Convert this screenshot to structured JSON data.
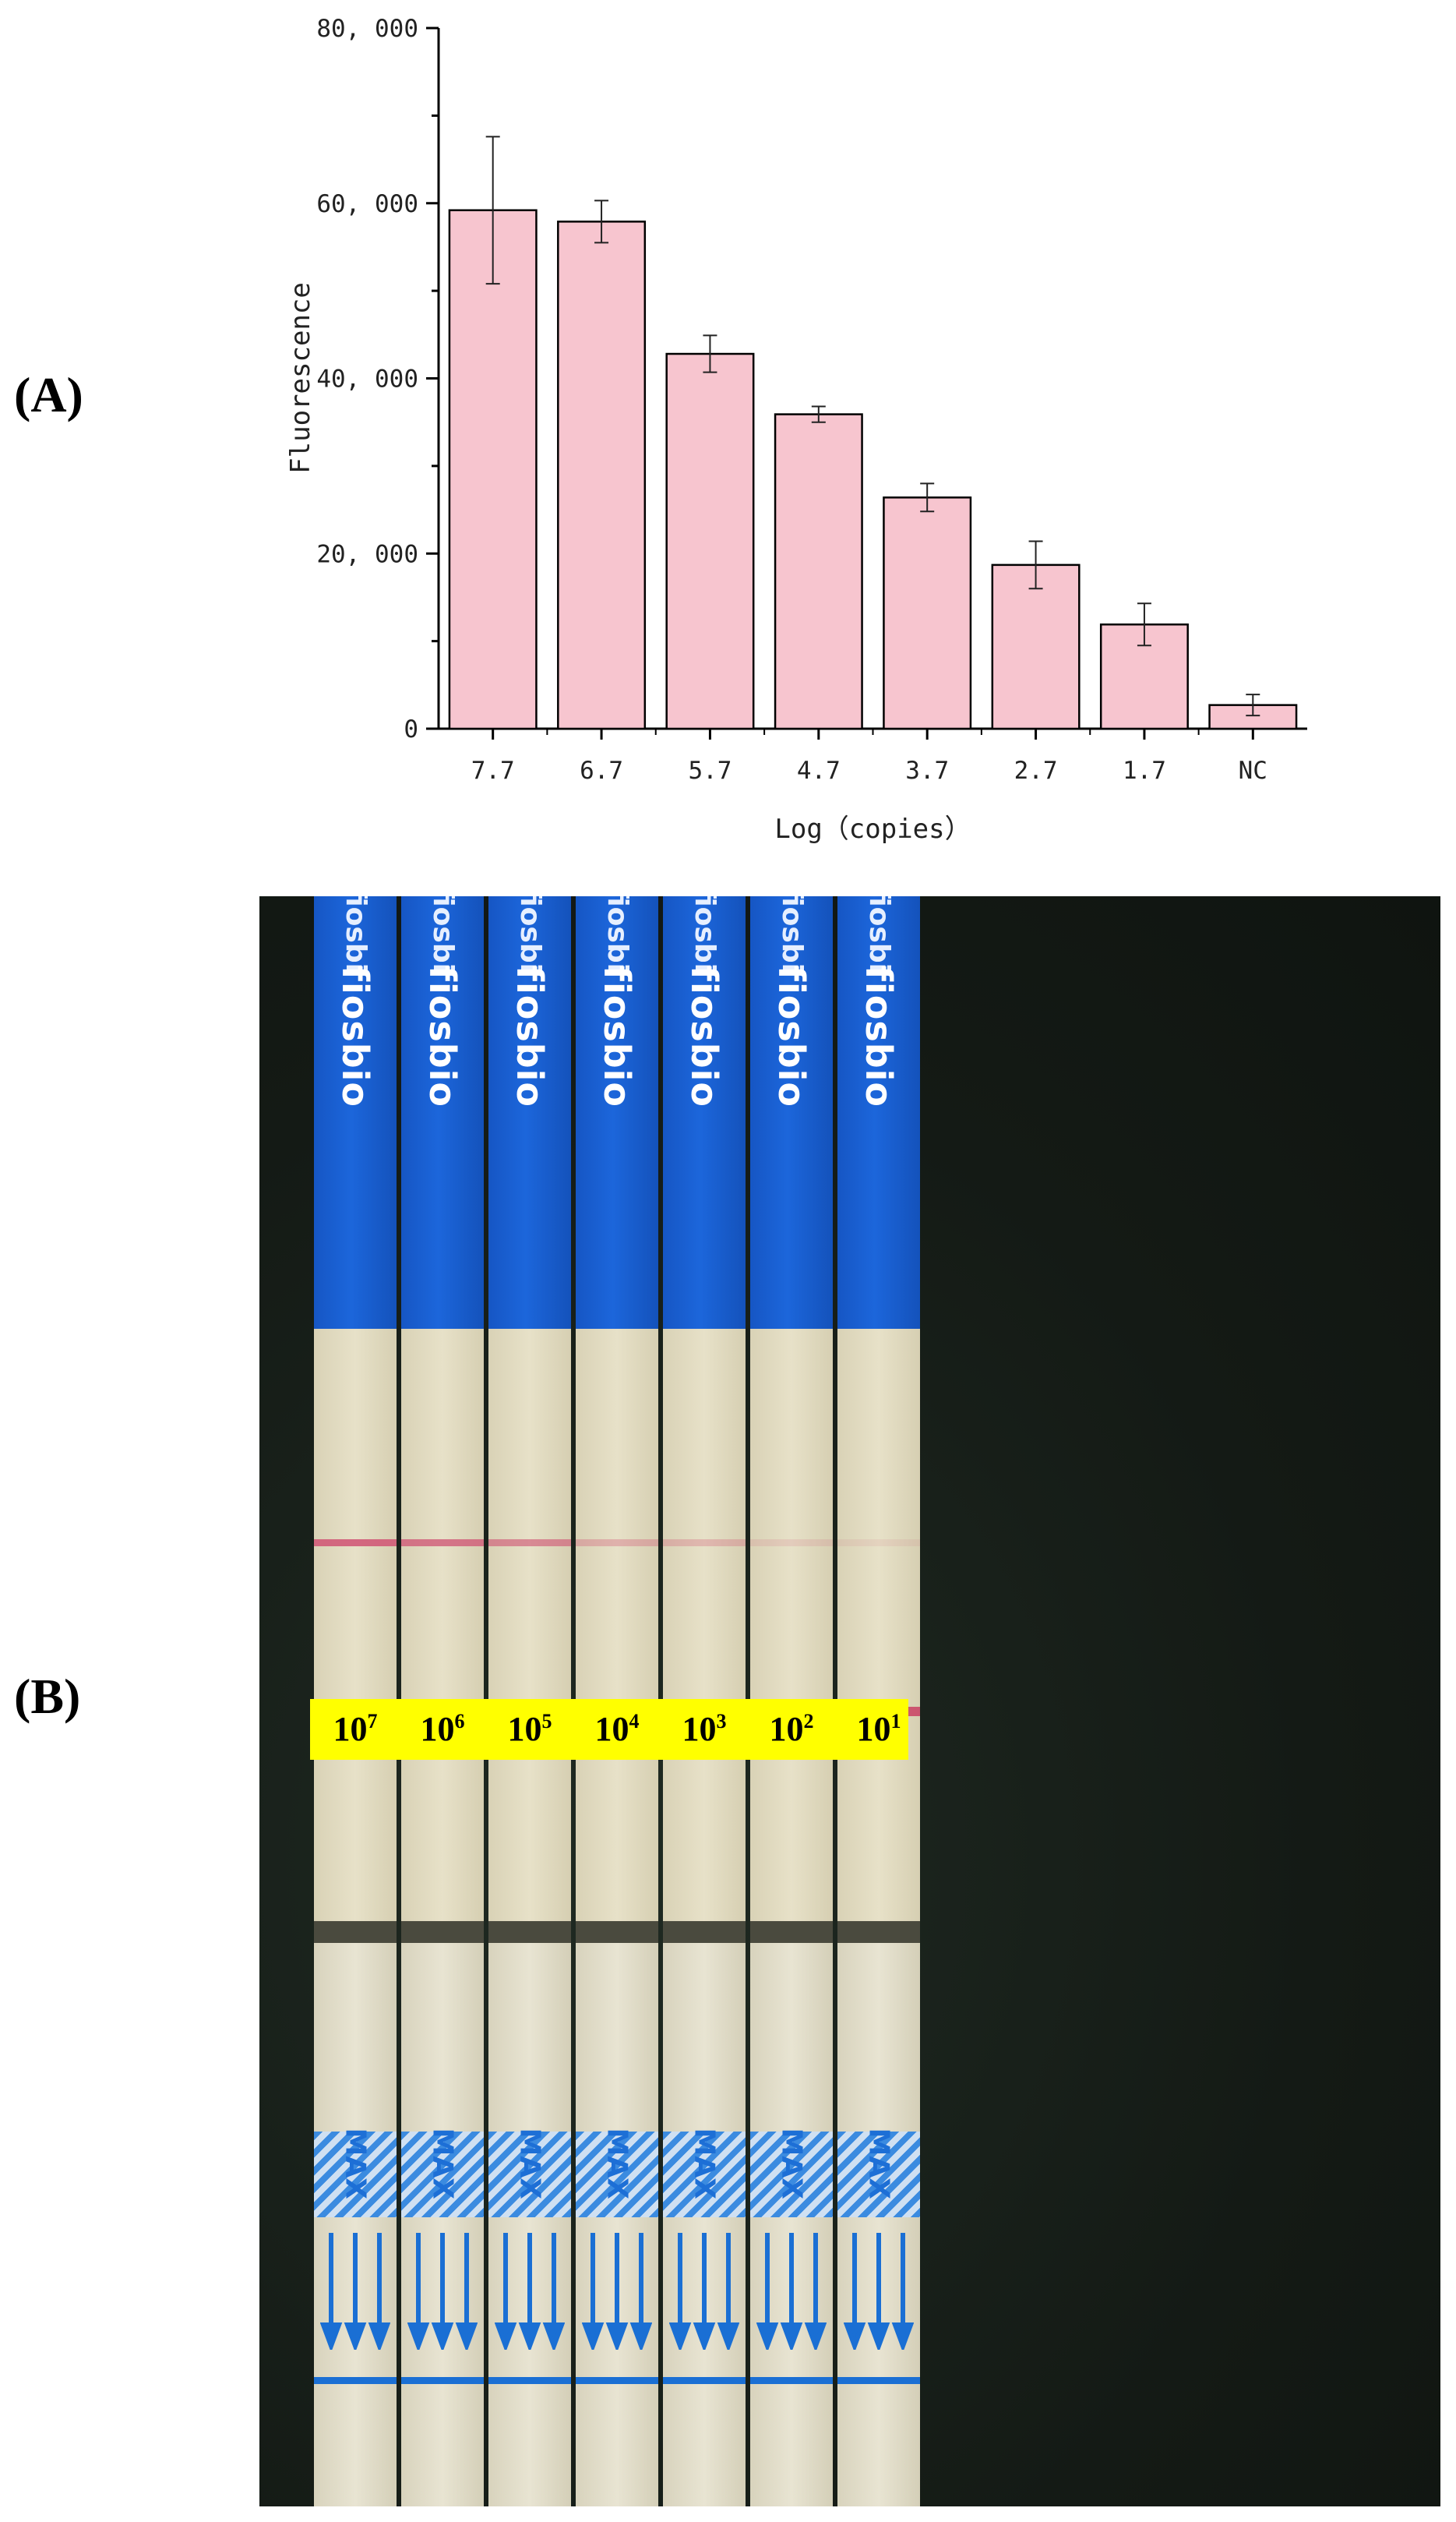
{
  "panels": {
    "a_label": "(A)",
    "b_label": "(B)"
  },
  "chart_data": {
    "type": "bar",
    "title": "",
    "xlabel": "Log（copies）",
    "ylabel": "Fluorescence",
    "categories": [
      "7.7",
      "6.7",
      "5.7",
      "4.7",
      "3.7",
      "2.7",
      "1.7",
      "NC"
    ],
    "values": [
      59200,
      57900,
      42800,
      35900,
      26400,
      18700,
      11900,
      2700
    ],
    "error": [
      8400,
      2400,
      2100,
      900,
      1600,
      2700,
      2400,
      1200
    ],
    "ylim": [
      0,
      80000
    ],
    "yticks": [
      0,
      20000,
      40000,
      60000,
      80000
    ],
    "ytick_labels": [
      "0",
      "20, 000",
      "40, 000",
      "60, 000",
      "80, 000"
    ],
    "bar_color": "#f7c5cf",
    "bar_edge": "#000000",
    "grid": false,
    "legend": "none"
  },
  "photo": {
    "brand": "fiosbio",
    "max_label": "MAX",
    "line_colors": {
      "control": "#d05a78",
      "test": "#c8365e"
    },
    "strip_blue": "#1c66db",
    "concentrations": [
      {
        "base": "10",
        "exp": "7"
      },
      {
        "base": "10",
        "exp": "6"
      },
      {
        "base": "10",
        "exp": "5"
      },
      {
        "base": "10",
        "exp": "4"
      },
      {
        "base": "10",
        "exp": "3"
      },
      {
        "base": "10",
        "exp": "2"
      },
      {
        "base": "10",
        "exp": "1"
      }
    ],
    "control_intensity": [
      0.9,
      0.8,
      0.65,
      0.35,
      0.3,
      0.15,
      0.1
    ],
    "test_intensity": [
      0.7,
      0.9,
      0.95,
      0.9,
      0.95,
      0.85,
      0.8
    ]
  }
}
